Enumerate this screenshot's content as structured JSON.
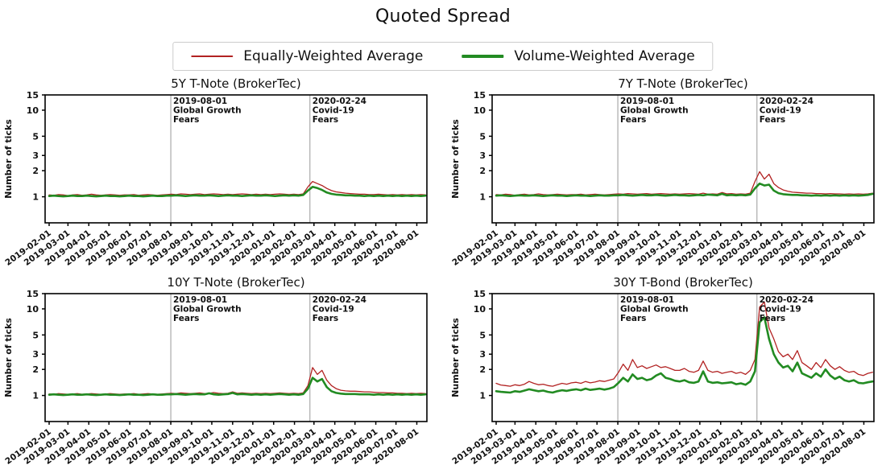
{
  "page_title": "Quoted Spread",
  "chart_data": {
    "type": "line",
    "title": "Quoted Spread",
    "layout": "2x2-grid",
    "yscale": "log",
    "ylim": [
      0.5,
      15
    ],
    "yticks": [
      1,
      2,
      3,
      5,
      10,
      15
    ],
    "ylabel": "Number of ticks",
    "grid": false,
    "x_start": "2019-02-01",
    "x_step_days": 7,
    "x_range_days": [
      -6,
      562
    ],
    "x_tick_labels": [
      "2019-02-01",
      "2019-03-01",
      "2019-04-01",
      "2019-05-01",
      "2019-06-01",
      "2019-07-01",
      "2019-08-01",
      "2019-09-01",
      "2019-10-01",
      "2019-11-01",
      "2019-12-01",
      "2020-01-01",
      "2020-02-01",
      "2020-03-01",
      "2020-04-01",
      "2020-05-01",
      "2020-06-01",
      "2020-07-01",
      "2020-08-01"
    ],
    "legend": {
      "position": "top-center",
      "items": [
        {
          "label": "Equally-Weighted Average",
          "color": "#b22222",
          "line_width": 2
        },
        {
          "label": "Volume-Weighted Average",
          "color": "#228b22",
          "line_width": 4
        }
      ]
    },
    "annotations": [
      {
        "date": "2019-08-01",
        "lines": [
          "2019-08-01",
          "Global Growth",
          "Fears"
        ],
        "color": "#999999"
      },
      {
        "date": "2020-02-24",
        "lines": [
          "2020-02-24",
          "Covid-19",
          "Fears"
        ],
        "color": "#999999"
      }
    ],
    "subplots": [
      {
        "title": "5Y T-Note (BrokerTec)",
        "series": [
          {
            "name": "Equally-Weighted Average",
            "color": "#b22222",
            "width": 1.3,
            "values": [
              1.05,
              1.04,
              1.06,
              1.05,
              1.03,
              1.05,
              1.06,
              1.04,
              1.05,
              1.07,
              1.05,
              1.04,
              1.05,
              1.06,
              1.05,
              1.04,
              1.05,
              1.05,
              1.06,
              1.04,
              1.05,
              1.06,
              1.05,
              1.04,
              1.05,
              1.06,
              1.07,
              1.06,
              1.08,
              1.07,
              1.06,
              1.07,
              1.08,
              1.06,
              1.07,
              1.08,
              1.07,
              1.06,
              1.07,
              1.06,
              1.07,
              1.08,
              1.07,
              1.06,
              1.07,
              1.06,
              1.07,
              1.06,
              1.07,
              1.08,
              1.07,
              1.06,
              1.07,
              1.06,
              1.08,
              1.3,
              1.5,
              1.42,
              1.35,
              1.25,
              1.18,
              1.14,
              1.12,
              1.1,
              1.09,
              1.08,
              1.07,
              1.07,
              1.06,
              1.06,
              1.07,
              1.06,
              1.05,
              1.06,
              1.05,
              1.06,
              1.05,
              1.06,
              1.05,
              1.06,
              1.05
            ]
          },
          {
            "name": "Volume-Weighted Average",
            "color": "#228b22",
            "width": 2.6,
            "values": [
              1.02,
              1.03,
              1.02,
              1.01,
              1.02,
              1.03,
              1.02,
              1.02,
              1.03,
              1.02,
              1.01,
              1.02,
              1.03,
              1.02,
              1.02,
              1.01,
              1.02,
              1.03,
              1.02,
              1.02,
              1.01,
              1.02,
              1.03,
              1.02,
              1.02,
              1.03,
              1.03,
              1.04,
              1.03,
              1.02,
              1.03,
              1.04,
              1.03,
              1.03,
              1.04,
              1.03,
              1.02,
              1.03,
              1.04,
              1.03,
              1.03,
              1.02,
              1.03,
              1.04,
              1.03,
              1.03,
              1.04,
              1.03,
              1.02,
              1.03,
              1.04,
              1.03,
              1.04,
              1.03,
              1.05,
              1.18,
              1.3,
              1.26,
              1.2,
              1.12,
              1.08,
              1.06,
              1.05,
              1.04,
              1.04,
              1.03,
              1.03,
              1.02,
              1.03,
              1.02,
              1.03,
              1.02,
              1.03,
              1.02,
              1.03,
              1.02,
              1.03,
              1.02,
              1.03,
              1.02,
              1.03
            ]
          }
        ]
      },
      {
        "title": "7Y T-Note (BrokerTec)",
        "series": [
          {
            "name": "Equally-Weighted Average",
            "color": "#b22222",
            "width": 1.3,
            "values": [
              1.06,
              1.05,
              1.07,
              1.06,
              1.04,
              1.06,
              1.07,
              1.05,
              1.06,
              1.08,
              1.06,
              1.05,
              1.06,
              1.07,
              1.06,
              1.05,
              1.06,
              1.06,
              1.07,
              1.05,
              1.06,
              1.07,
              1.06,
              1.05,
              1.06,
              1.07,
              1.08,
              1.07,
              1.09,
              1.08,
              1.07,
              1.08,
              1.09,
              1.07,
              1.08,
              1.09,
              1.08,
              1.07,
              1.08,
              1.07,
              1.08,
              1.09,
              1.08,
              1.07,
              1.1,
              1.07,
              1.08,
              1.07,
              1.12,
              1.08,
              1.09,
              1.07,
              1.08,
              1.07,
              1.1,
              1.5,
              1.95,
              1.6,
              1.82,
              1.42,
              1.28,
              1.2,
              1.16,
              1.13,
              1.12,
              1.11,
              1.1,
              1.1,
              1.09,
              1.09,
              1.08,
              1.09,
              1.08,
              1.08,
              1.07,
              1.08,
              1.07,
              1.08,
              1.07,
              1.08,
              1.1
            ]
          },
          {
            "name": "Volume-Weighted Average",
            "color": "#228b22",
            "width": 2.6,
            "values": [
              1.03,
              1.04,
              1.03,
              1.02,
              1.03,
              1.04,
              1.03,
              1.03,
              1.04,
              1.03,
              1.02,
              1.03,
              1.04,
              1.03,
              1.03,
              1.02,
              1.03,
              1.04,
              1.03,
              1.03,
              1.02,
              1.03,
              1.04,
              1.03,
              1.03,
              1.04,
              1.04,
              1.05,
              1.04,
              1.03,
              1.04,
              1.05,
              1.04,
              1.04,
              1.05,
              1.04,
              1.03,
              1.04,
              1.05,
              1.04,
              1.04,
              1.03,
              1.04,
              1.05,
              1.04,
              1.06,
              1.05,
              1.04,
              1.08,
              1.04,
              1.05,
              1.04,
              1.05,
              1.04,
              1.06,
              1.25,
              1.42,
              1.35,
              1.38,
              1.18,
              1.1,
              1.07,
              1.06,
              1.05,
              1.05,
              1.04,
              1.04,
              1.03,
              1.04,
              1.03,
              1.04,
              1.03,
              1.04,
              1.03,
              1.04,
              1.03,
              1.04,
              1.03,
              1.04,
              1.05,
              1.08
            ]
          }
        ]
      },
      {
        "title": "10Y T-Note (BrokerTec)",
        "series": [
          {
            "name": "Equally-Weighted Average",
            "color": "#b22222",
            "width": 1.3,
            "values": [
              1.04,
              1.03,
              1.05,
              1.04,
              1.03,
              1.04,
              1.05,
              1.03,
              1.04,
              1.05,
              1.04,
              1.03,
              1.04,
              1.05,
              1.04,
              1.03,
              1.04,
              1.04,
              1.05,
              1.03,
              1.04,
              1.05,
              1.04,
              1.03,
              1.04,
              1.05,
              1.06,
              1.05,
              1.07,
              1.06,
              1.05,
              1.06,
              1.07,
              1.05,
              1.06,
              1.08,
              1.06,
              1.05,
              1.06,
              1.1,
              1.06,
              1.07,
              1.06,
              1.05,
              1.06,
              1.05,
              1.06,
              1.05,
              1.06,
              1.07,
              1.06,
              1.05,
              1.06,
              1.05,
              1.07,
              1.3,
              2.1,
              1.75,
              1.95,
              1.5,
              1.3,
              1.2,
              1.15,
              1.13,
              1.12,
              1.12,
              1.11,
              1.1,
              1.1,
              1.09,
              1.08,
              1.08,
              1.07,
              1.07,
              1.06,
              1.06,
              1.05,
              1.06,
              1.05,
              1.06,
              1.05
            ]
          },
          {
            "name": "Volume-Weighted Average",
            "color": "#228b22",
            "width": 2.6,
            "values": [
              1.02,
              1.03,
              1.02,
              1.01,
              1.02,
              1.03,
              1.02,
              1.02,
              1.03,
              1.02,
              1.01,
              1.02,
              1.03,
              1.02,
              1.02,
              1.01,
              1.02,
              1.03,
              1.02,
              1.02,
              1.01,
              1.02,
              1.03,
              1.02,
              1.02,
              1.03,
              1.03,
              1.04,
              1.03,
              1.02,
              1.03,
              1.04,
              1.03,
              1.03,
              1.06,
              1.03,
              1.02,
              1.03,
              1.04,
              1.07,
              1.03,
              1.04,
              1.03,
              1.02,
              1.03,
              1.02,
              1.03,
              1.02,
              1.03,
              1.04,
              1.03,
              1.02,
              1.03,
              1.02,
              1.04,
              1.2,
              1.6,
              1.45,
              1.55,
              1.25,
              1.12,
              1.07,
              1.05,
              1.04,
              1.04,
              1.04,
              1.03,
              1.03,
              1.03,
              1.02,
              1.03,
              1.02,
              1.03,
              1.02,
              1.03,
              1.02,
              1.03,
              1.02,
              1.03,
              1.02,
              1.03
            ]
          }
        ]
      },
      {
        "title": "30Y T-Bond (BrokerTec)",
        "series": [
          {
            "name": "Equally-Weighted Average",
            "color": "#b22222",
            "width": 1.3,
            "values": [
              1.38,
              1.32,
              1.3,
              1.28,
              1.33,
              1.3,
              1.35,
              1.45,
              1.38,
              1.33,
              1.35,
              1.3,
              1.28,
              1.33,
              1.38,
              1.35,
              1.4,
              1.42,
              1.38,
              1.45,
              1.4,
              1.43,
              1.48,
              1.45,
              1.5,
              1.55,
              1.85,
              2.3,
              1.95,
              2.6,
              2.1,
              2.2,
              2.05,
              2.15,
              2.25,
              2.1,
              2.15,
              2.05,
              1.95,
              1.95,
              2.05,
              1.9,
              1.85,
              1.95,
              2.5,
              1.95,
              1.85,
              1.9,
              1.8,
              1.85,
              1.9,
              1.8,
              1.85,
              1.75,
              1.95,
              2.6,
              10.5,
              12.0,
              6.0,
              4.5,
              3.2,
              2.8,
              3.0,
              2.6,
              3.3,
              2.4,
              2.2,
              2.0,
              2.4,
              2.1,
              2.6,
              2.2,
              2.0,
              2.15,
              1.95,
              1.85,
              1.9,
              1.75,
              1.7,
              1.8,
              1.85
            ]
          },
          {
            "name": "Volume-Weighted Average",
            "color": "#228b22",
            "width": 2.6,
            "values": [
              1.12,
              1.1,
              1.09,
              1.08,
              1.12,
              1.1,
              1.14,
              1.18,
              1.15,
              1.12,
              1.14,
              1.1,
              1.08,
              1.12,
              1.15,
              1.13,
              1.16,
              1.18,
              1.15,
              1.2,
              1.16,
              1.18,
              1.2,
              1.17,
              1.2,
              1.25,
              1.4,
              1.6,
              1.45,
              1.75,
              1.55,
              1.6,
              1.5,
              1.55,
              1.7,
              1.8,
              1.6,
              1.55,
              1.48,
              1.45,
              1.5,
              1.42,
              1.4,
              1.45,
              1.9,
              1.45,
              1.4,
              1.42,
              1.38,
              1.4,
              1.42,
              1.35,
              1.38,
              1.33,
              1.45,
              1.9,
              7.0,
              8.0,
              4.5,
              3.0,
              2.4,
              2.1,
              2.2,
              1.9,
              2.4,
              1.8,
              1.7,
              1.6,
              1.8,
              1.65,
              2.0,
              1.7,
              1.55,
              1.65,
              1.5,
              1.45,
              1.5,
              1.4,
              1.38,
              1.42,
              1.45
            ]
          }
        ]
      }
    ]
  }
}
